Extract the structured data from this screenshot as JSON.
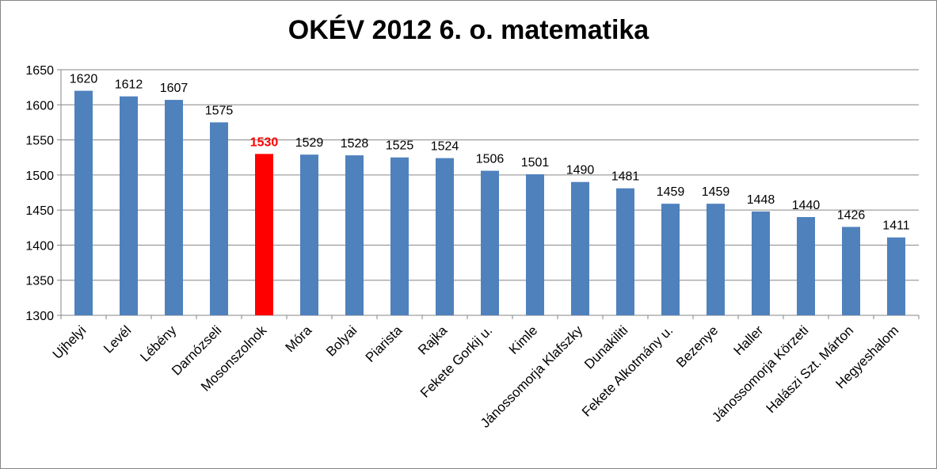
{
  "chart_data": {
    "type": "bar",
    "title": "OKÉV 2012 6. o. matematika",
    "xlabel": "",
    "ylabel": "",
    "ylim": [
      1300,
      1650
    ],
    "ytick_step": 50,
    "grid": true,
    "legend": "none",
    "categories": [
      "Ujhelyi",
      "Levél",
      "Lébény",
      "Darnózseli",
      "Mosonszolnok",
      "Móra",
      "Bolyai",
      "Piarista",
      "Rajka",
      "Fekete Gorkij u.",
      "Kimle",
      "Jánossomorja Klafszky",
      "Dunakiliti",
      "Fekete Alkotmány u.",
      "Bezenye",
      "Haller",
      "Jánossomorja Körzeti",
      "Halászi Szt. Márton",
      "Hegyeshalom"
    ],
    "values": [
      1620,
      1612,
      1607,
      1575,
      1530,
      1529,
      1528,
      1525,
      1524,
      1506,
      1501,
      1490,
      1481,
      1459,
      1459,
      1448,
      1440,
      1426,
      1411
    ],
    "highlight_index": 4,
    "colors": {
      "bar": "#4f81bd",
      "highlight": "#ff0000",
      "grid": "#868686"
    }
  }
}
